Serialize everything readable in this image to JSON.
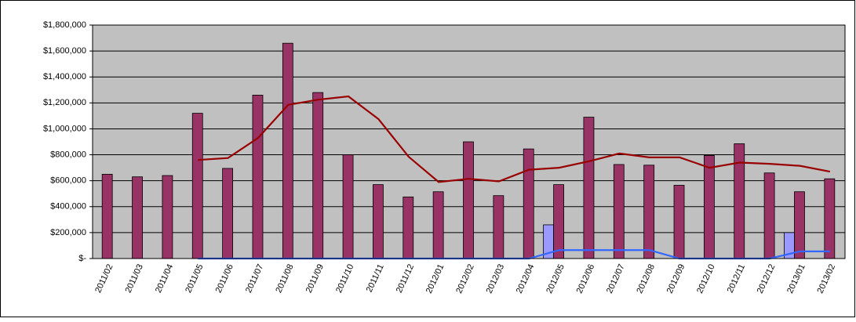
{
  "chart_data": {
    "type": "bar-line",
    "categories": [
      "2011/02",
      "2011/03",
      "2011/04",
      "2011/05",
      "2011/06",
      "2011/07",
      "2011/08",
      "2011/09",
      "2011/10",
      "2011/11",
      "2011/12",
      "2012/01",
      "2012/02",
      "2012/03",
      "2012/04",
      "2012/05",
      "2012/06",
      "2012/07",
      "2012/08",
      "2012/09",
      "2012/10",
      "2012/11",
      "2012/12",
      "2013/01",
      "2013/02"
    ],
    "series": [
      {
        "type": "bar",
        "color": "#9999ff",
        "values": [
          0,
          0,
          0,
          0,
          0,
          0,
          0,
          0,
          0,
          0,
          0,
          0,
          0,
          0,
          0,
          260000,
          0,
          0,
          0,
          0,
          0,
          0,
          0,
          200000,
          0
        ]
      },
      {
        "type": "bar",
        "color": "#993366",
        "values": [
          650000,
          630000,
          640000,
          1120000,
          695000,
          1260000,
          1660000,
          1280000,
          800000,
          570000,
          475000,
          515000,
          900000,
          485000,
          845000,
          570000,
          1090000,
          725000,
          720000,
          565000,
          795000,
          885000,
          660000,
          515000,
          615000
        ]
      },
      {
        "type": "line",
        "color": "#990000",
        "values": [
          null,
          null,
          null,
          760000,
          775000,
          930000,
          1185000,
          1225000,
          1250000,
          1075000,
          785000,
          590000,
          615000,
          595000,
          685000,
          700000,
          750000,
          810000,
          780000,
          780000,
          700000,
          740000,
          730000,
          715000,
          670000
        ]
      },
      {
        "type": "line",
        "color": "#3366ff",
        "values": [
          null,
          null,
          null,
          0,
          0,
          0,
          0,
          0,
          0,
          0,
          0,
          0,
          0,
          0,
          0,
          65000,
          65000,
          65000,
          65000,
          0,
          0,
          0,
          0,
          55000,
          55000
        ]
      }
    ],
    "ylim": [
      0,
      1800000
    ],
    "yticks": [
      {
        "value": 0,
        "label": "$-"
      },
      {
        "value": 200000,
        "label": "$200,000"
      },
      {
        "value": 400000,
        "label": "$400,000"
      },
      {
        "value": 600000,
        "label": "$600,000"
      },
      {
        "value": 800000,
        "label": "$800,000"
      },
      {
        "value": 1000000,
        "label": "$1,000,000"
      },
      {
        "value": 1200000,
        "label": "$1,200,000"
      },
      {
        "value": 1400000,
        "label": "$1,400,000"
      },
      {
        "value": 1600000,
        "label": "$1,600,000"
      },
      {
        "value": 1800000,
        "label": "$1,800,000"
      }
    ],
    "grid": true,
    "plot_background": "#c0c0c0"
  }
}
